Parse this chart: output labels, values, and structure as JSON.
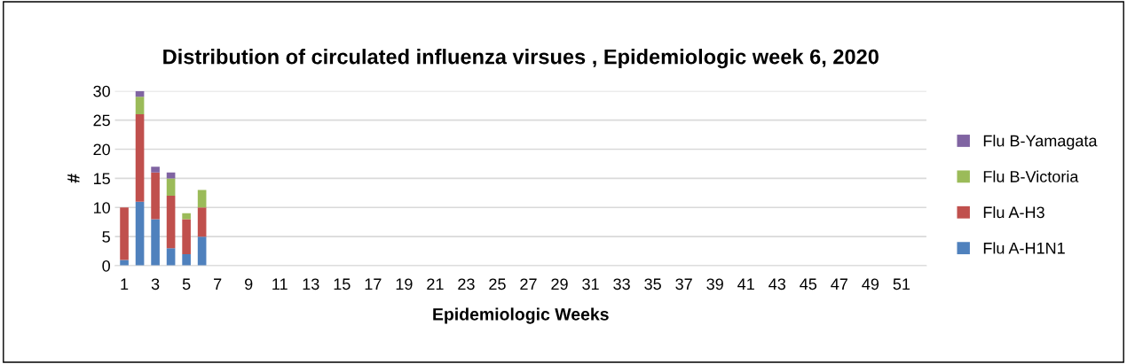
{
  "chart_data": {
    "type": "bar",
    "stacked": true,
    "title": "Distribution of circulated influenza virsues , Epidemiologic week 6, 2020",
    "xlabel": "Epidemiologic Weeks",
    "ylabel": "#",
    "categories": [
      "1",
      null,
      "3",
      null,
      "5",
      null,
      "7",
      null,
      "9",
      null,
      "11",
      null,
      "13",
      null,
      "15",
      null,
      "17",
      null,
      "19",
      null,
      "21",
      null,
      "23",
      null,
      "25",
      null,
      "27",
      null,
      "29",
      null,
      "31",
      null,
      "33",
      null,
      "35",
      null,
      "37",
      null,
      "39",
      null,
      "41",
      null,
      "43",
      null,
      "45",
      null,
      "47",
      null,
      "49",
      null,
      "51",
      null
    ],
    "series": [
      {
        "name": "Flu A-H1N1",
        "color": "#4f81bd",
        "values": [
          1,
          11,
          8,
          3,
          2,
          5,
          0,
          0,
          0,
          0,
          0,
          0,
          0,
          0,
          0,
          0,
          0,
          0,
          0,
          0,
          0,
          0,
          0,
          0,
          0,
          0,
          0,
          0,
          0,
          0,
          0,
          0,
          0,
          0,
          0,
          0,
          0,
          0,
          0,
          0,
          0,
          0,
          0,
          0,
          0,
          0,
          0,
          0,
          0,
          0,
          0,
          0
        ]
      },
      {
        "name": "Flu A-H3",
        "color": "#c0504d",
        "values": [
          9,
          15,
          8,
          9,
          6,
          5,
          0,
          0,
          0,
          0,
          0,
          0,
          0,
          0,
          0,
          0,
          0,
          0,
          0,
          0,
          0,
          0,
          0,
          0,
          0,
          0,
          0,
          0,
          0,
          0,
          0,
          0,
          0,
          0,
          0,
          0,
          0,
          0,
          0,
          0,
          0,
          0,
          0,
          0,
          0,
          0,
          0,
          0,
          0,
          0,
          0,
          0
        ]
      },
      {
        "name": "Flu B-Victoria",
        "color": "#9bbb59",
        "values": [
          0,
          3,
          0,
          3,
          1,
          3,
          0,
          0,
          0,
          0,
          0,
          0,
          0,
          0,
          0,
          0,
          0,
          0,
          0,
          0,
          0,
          0,
          0,
          0,
          0,
          0,
          0,
          0,
          0,
          0,
          0,
          0,
          0,
          0,
          0,
          0,
          0,
          0,
          0,
          0,
          0,
          0,
          0,
          0,
          0,
          0,
          0,
          0,
          0,
          0,
          0,
          0
        ]
      },
      {
        "name": "Flu B-Yamagata",
        "color": "#8064a2",
        "values": [
          0,
          1,
          1,
          1,
          0,
          0,
          0,
          0,
          0,
          0,
          0,
          0,
          0,
          0,
          0,
          0,
          0,
          0,
          0,
          0,
          0,
          0,
          0,
          0,
          0,
          0,
          0,
          0,
          0,
          0,
          0,
          0,
          0,
          0,
          0,
          0,
          0,
          0,
          0,
          0,
          0,
          0,
          0,
          0,
          0,
          0,
          0,
          0,
          0,
          0,
          0,
          0
        ]
      }
    ],
    "ylim": [
      0,
      30
    ],
    "yticks": [
      0,
      5,
      10,
      15,
      20,
      25,
      30
    ],
    "grid": "y",
    "legend": "right"
  }
}
